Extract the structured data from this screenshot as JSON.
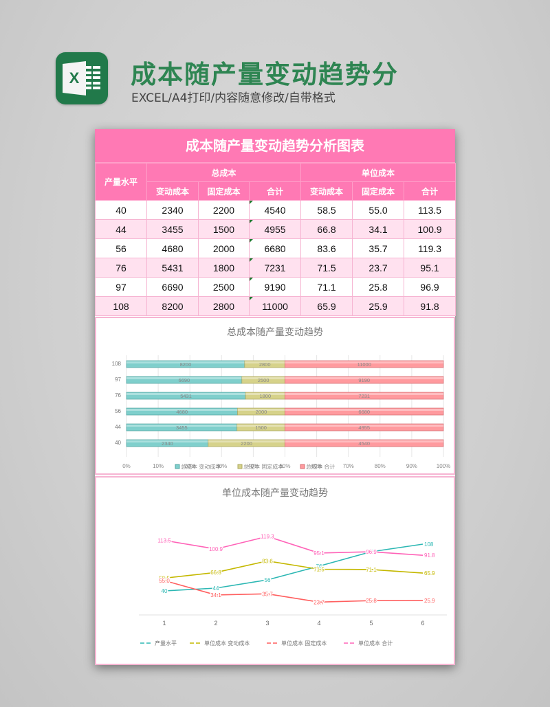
{
  "header": {
    "title": "成本随产量变动趋势分",
    "subtitle": "EXCEL/A4打印/内容随意修改/自带格式",
    "icon": "excel-icon",
    "icon_letter": "X",
    "brand_color": "#21794a"
  },
  "table": {
    "title": "成本随产量变动趋势分析图表",
    "header_color": "#ff79b4",
    "stripe_color": "#ffe1ef",
    "col_output": "产量水平",
    "group_total": "总成本",
    "group_unit": "单位成本",
    "sub_cols": [
      "变动成本",
      "固定成本",
      "合计",
      "变动成本",
      "固定成本",
      "合计"
    ],
    "rows": [
      [
        "40",
        "2340",
        "2200",
        "4540",
        "58.5",
        "55.0",
        "113.5"
      ],
      [
        "44",
        "3455",
        "1500",
        "4955",
        "66.8",
        "34.1",
        "100.9"
      ],
      [
        "56",
        "4680",
        "2000",
        "6680",
        "83.6",
        "35.7",
        "119.3"
      ],
      [
        "76",
        "5431",
        "1800",
        "7231",
        "71.5",
        "23.7",
        "95.1"
      ],
      [
        "97",
        "6690",
        "2500",
        "9190",
        "71.1",
        "25.8",
        "96.9"
      ],
      [
        "108",
        "8200",
        "2800",
        "11000",
        "65.9",
        "25.9",
        "91.8"
      ]
    ]
  },
  "chart_data": [
    {
      "type": "bar",
      "orientation": "horizontal",
      "stacked": "percent",
      "title": "总成本随产量变动趋势",
      "categories": [
        "40",
        "44",
        "56",
        "76",
        "97",
        "108"
      ],
      "series": [
        {
          "name": "总成本 变动成本",
          "color": "#7fcfcc",
          "values": [
            2340,
            3455,
            4680,
            5431,
            6690,
            8200
          ]
        },
        {
          "name": "总成本 固定成本",
          "color": "#d6d28a",
          "values": [
            2200,
            1500,
            2000,
            1800,
            2500,
            2800
          ]
        },
        {
          "name": "总成本 合计",
          "color": "#ff9a9e",
          "values": [
            4540,
            4955,
            6680,
            7231,
            9190,
            11000
          ]
        }
      ],
      "xticks": [
        "0%",
        "10%",
        "20%",
        "30%",
        "40%",
        "50%",
        "60%",
        "70%",
        "80%",
        "90%",
        "100%"
      ],
      "xlim": [
        0,
        100
      ],
      "grid": true,
      "legend_position": "bottom"
    },
    {
      "type": "line",
      "title": "单位成本随产量变动趋势",
      "categories": [
        "1",
        "2",
        "3",
        "4",
        "5",
        "6"
      ],
      "series": [
        {
          "name": "产量水平",
          "color": "#2bb7b3",
          "values": [
            40,
            44,
            56,
            76,
            97,
            108
          ]
        },
        {
          "name": "单位成本 变动成本",
          "color": "#c4b800",
          "values": [
            58.5,
            66.8,
            83.6,
            71.5,
            71.1,
            65.9
          ]
        },
        {
          "name": "单位成本 固定成本",
          "color": "#ff5f5f",
          "values": [
            55.0,
            34.1,
            35.7,
            23.7,
            25.8,
            25.9
          ]
        },
        {
          "name": "单位成本 合计",
          "color": "#ff63b8",
          "values": [
            113.5,
            100.9,
            119.3,
            95.1,
            96.9,
            91.8
          ]
        }
      ],
      "data_labels": true,
      "grid": false,
      "legend_position": "bottom"
    }
  ]
}
